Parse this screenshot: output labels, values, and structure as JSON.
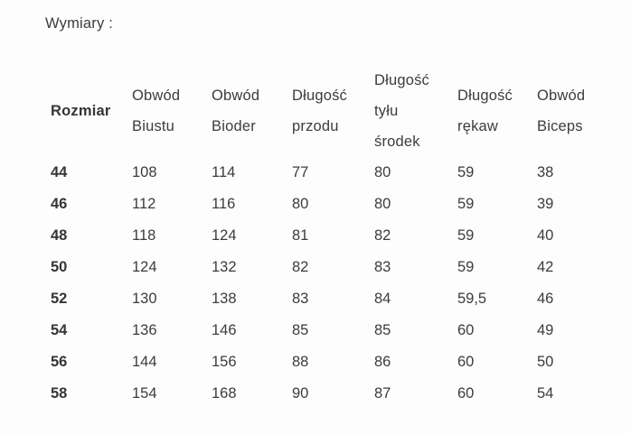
{
  "title": "Wymiary :",
  "colors": {
    "background": "#fdfdfd",
    "text": "#3c3c3c",
    "text_bold": "#353535"
  },
  "table": {
    "headers": [
      "Rozmiar",
      "Obwód\nBiustu",
      "Obwód\nBioder",
      "Długość\nprzodu",
      "Długość\ntyłu\nśrodek",
      "Długość\nrękaw",
      "Obwód\nBiceps"
    ],
    "rows": [
      {
        "size": "44",
        "values": [
          "108",
          "114",
          "77",
          "80",
          "59",
          "38"
        ]
      },
      {
        "size": "46",
        "values": [
          "112",
          "116",
          "80",
          "80",
          "59",
          "39"
        ]
      },
      {
        "size": "48",
        "values": [
          "118",
          "124",
          "81",
          "82",
          "59",
          "40"
        ]
      },
      {
        "size": "50",
        "values": [
          "124",
          "132",
          "82",
          "83",
          "59",
          "42"
        ]
      },
      {
        "size": "52",
        "values": [
          "130",
          "138",
          "83",
          "84",
          "59,5",
          "46"
        ]
      },
      {
        "size": "54",
        "values": [
          "136",
          "146",
          "85",
          "85",
          "60",
          "49"
        ]
      },
      {
        "size": "56",
        "values": [
          "144",
          "156",
          "88",
          "86",
          "60",
          "50"
        ]
      },
      {
        "size": "58",
        "values": [
          "154",
          "168",
          "90",
          "87",
          "60",
          "54"
        ]
      }
    ]
  }
}
